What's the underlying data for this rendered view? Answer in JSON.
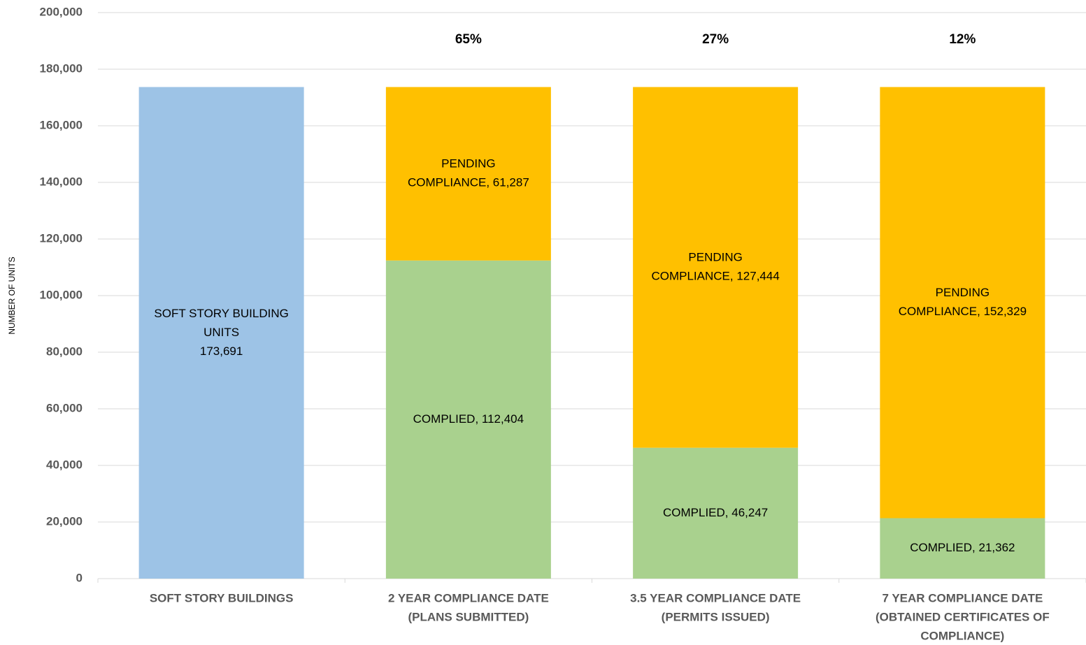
{
  "chart_data": {
    "type": "stacked_bar",
    "ylabel": "NUMBER OF UNITS",
    "categories": [
      [
        "SOFT STORY BUILDINGS"
      ],
      [
        "2 YEAR COMPLIANCE DATE",
        "(PLANS SUBMITTED)"
      ],
      [
        "3.5 YEAR COMPLIANCE DATE",
        "(PERMITS ISSUED)"
      ],
      [
        "7 YEAR COMPLIANCE DATE",
        "(OBTAINED CERTIFICATES OF",
        "COMPLIANCE)"
      ]
    ],
    "series": [
      {
        "name": "SOFT STORY BUILDING UNITS",
        "color": "#9dc3e6",
        "values": [
          173691,
          null,
          null,
          null
        ],
        "value_labels": [
          [
            "SOFT STORY BUILDING",
            "UNITS",
            "173,691"
          ],
          null,
          null,
          null
        ]
      },
      {
        "name": "COMPLIED",
        "color": "#a9d18e",
        "values": [
          null,
          112404,
          46247,
          21362
        ],
        "value_labels": [
          null,
          [
            "COMPLIED, 112,404"
          ],
          [
            "COMPLIED, 46,247"
          ],
          [
            "COMPLIED, 21,362"
          ]
        ]
      },
      {
        "name": "PENDING COMPLIANCE",
        "color": "#ffc000",
        "values": [
          null,
          61287,
          127444,
          152329
        ],
        "value_labels": [
          null,
          [
            "PENDING",
            "COMPLIANCE, 61,287"
          ],
          [
            "PENDING",
            "COMPLIANCE, 127,444"
          ],
          [
            "PENDING",
            "COMPLIANCE, 152,329"
          ]
        ]
      }
    ],
    "annotations": [
      null,
      "65%",
      "27%",
      "12%"
    ],
    "ylim": [
      0,
      200000
    ],
    "yticks": [
      0,
      {
        "value": 20000,
        "label": "20,000"
      },
      {
        "value": 40000,
        "label": "40,000"
      },
      {
        "value": 60000,
        "label": "60,000"
      },
      {
        "value": 80000,
        "label": "80,000"
      },
      {
        "value": 100000,
        "label": "100,000"
      },
      {
        "value": 120000,
        "label": "120,000"
      },
      {
        "value": 140000,
        "label": "140,000"
      },
      {
        "value": 160000,
        "label": "160,000"
      },
      {
        "value": 180000,
        "label": "180,000"
      },
      {
        "value": 200000,
        "label": "200,000"
      }
    ],
    "grid": true
  }
}
